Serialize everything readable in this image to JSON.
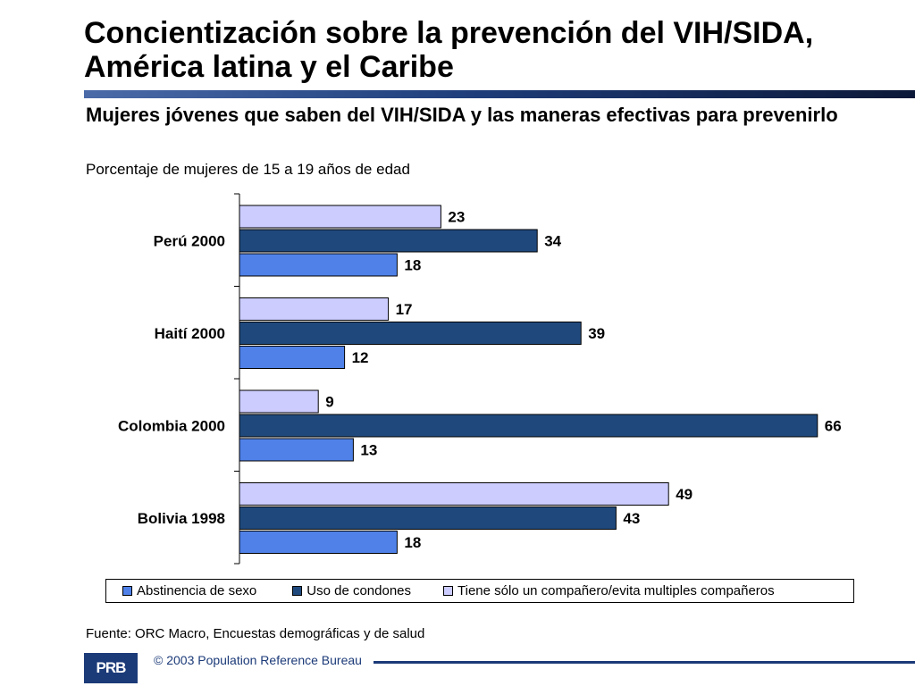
{
  "title": "Concientización sobre la prevención del VIH/SIDA, América latina y el Caribe",
  "subtitle": "Mujeres jóvenes que saben del VIH/SIDA y las maneras efectivas para prevenirlo",
  "caption": "Porcentaje de mujeres de 15 a 19 años de edad",
  "source": "Fuente: ORC Macro, Encuestas demográficas y de salud",
  "copyright": "© 2003 Population Reference Bureau",
  "logo_text": "PRB",
  "chart_data": {
    "type": "bar",
    "orientation": "horizontal",
    "categories": [
      "Perú 2000",
      "Haití 2000",
      "Colombia 2000",
      "Bolivia 1998"
    ],
    "series": [
      {
        "name": "Tiene sólo un compañero/evita multiples compañeros",
        "color": "#ccccff",
        "values": [
          23,
          17,
          9,
          49
        ]
      },
      {
        "name": "Uso de condones",
        "color": "#1f497d",
        "values": [
          34,
          39,
          66,
          43
        ]
      },
      {
        "name": "Abstinencia de sexo",
        "color": "#4f81e8",
        "values": [
          18,
          12,
          13,
          18
        ]
      }
    ],
    "legend_order": [
      "Abstinencia de sexo",
      "Uso de condones",
      "Tiene sólo un compañero/evita multiples compañeros"
    ],
    "xlim": [
      0,
      66
    ],
    "grid": false,
    "legend_position": "bottom"
  }
}
